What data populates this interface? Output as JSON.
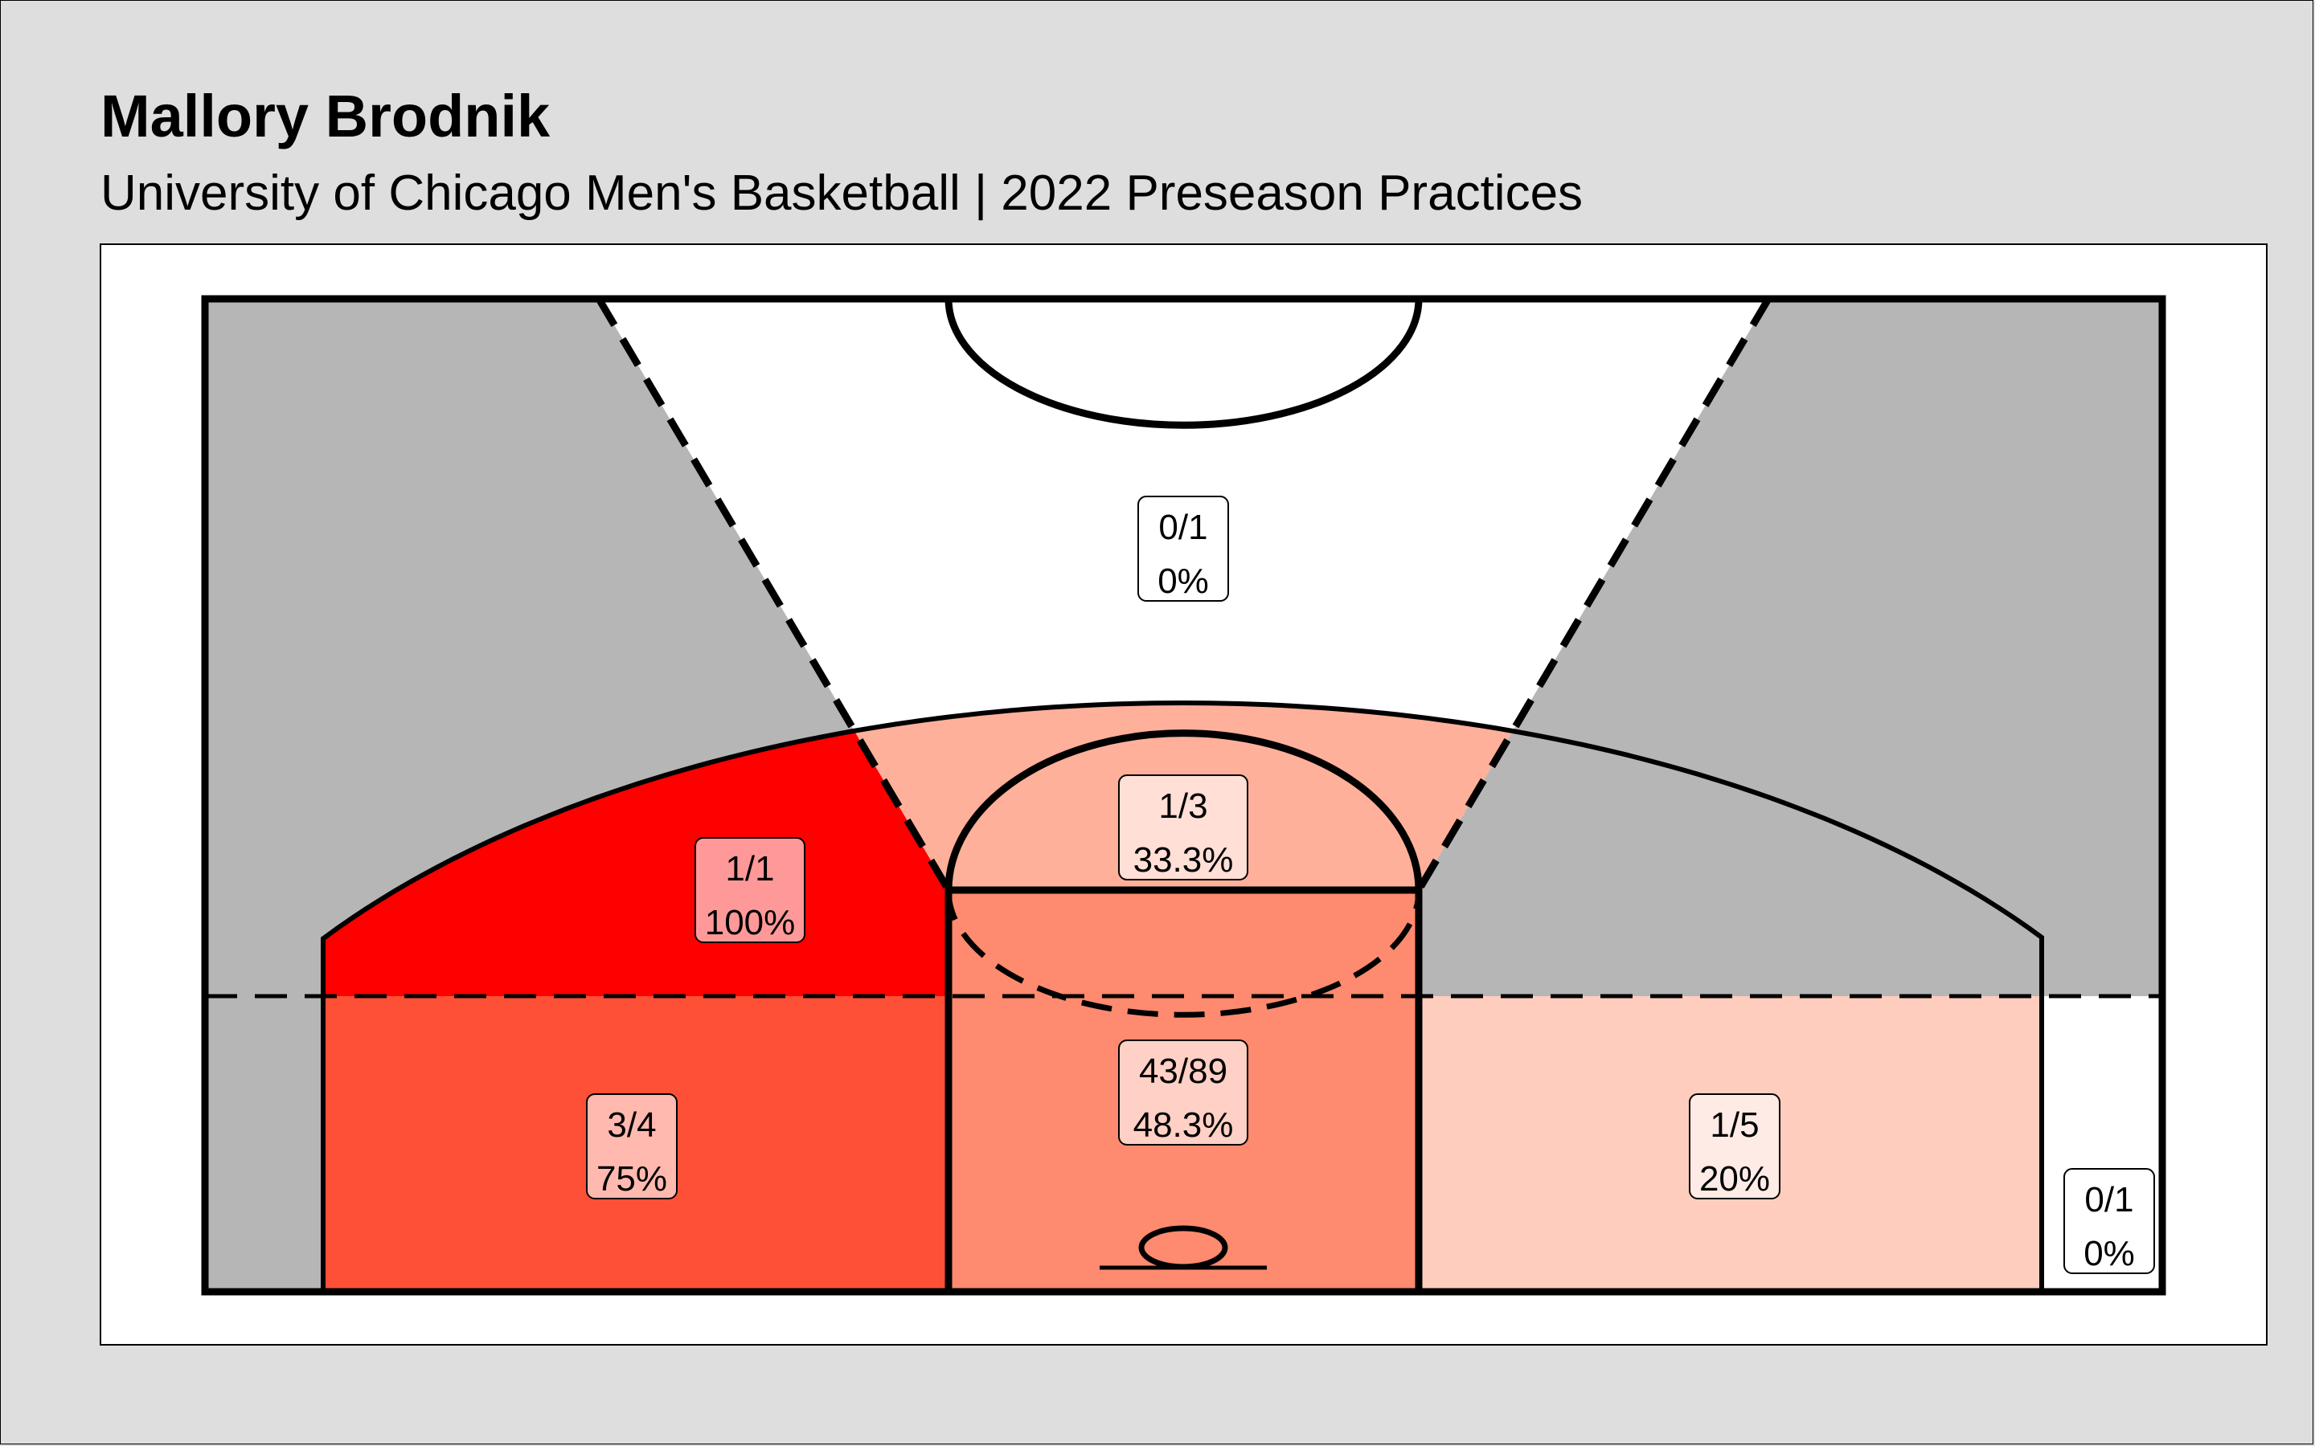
{
  "header": {
    "title": "Mallory Brodnik",
    "subtitle": "University of Chicago Men's Basketball | 2022 Preseason Practices"
  },
  "chart_data": {
    "type": "heatmap",
    "title": "Mallory Brodnik",
    "subtitle": "University of Chicago Men's Basketball | 2022 Preseason Practices",
    "zones": [
      {
        "id": "top-of-key-three",
        "made": 0,
        "attempts": 1,
        "label_made": "0/1",
        "label_pct": "0%",
        "pct": 0,
        "color": "#ffffff"
      },
      {
        "id": "free-throw-circle",
        "made": 1,
        "attempts": 3,
        "label_made": "1/3",
        "label_pct": "33.3%",
        "pct": 33.3,
        "color": "#feb09a"
      },
      {
        "id": "left-wing-midrange",
        "made": 1,
        "attempts": 1,
        "label_made": "1/1",
        "label_pct": "100%",
        "pct": 100,
        "color": "#fe0000"
      },
      {
        "id": "left-baseline-midrange",
        "made": 3,
        "attempts": 4,
        "label_made": "3/4",
        "label_pct": "75%",
        "pct": 75,
        "color": "#fe5037"
      },
      {
        "id": "paint",
        "made": 43,
        "attempts": 89,
        "label_made": "43/89",
        "label_pct": "48.3%",
        "pct": 48.3,
        "color": "#fe8a6f"
      },
      {
        "id": "right-baseline-midrange",
        "made": 1,
        "attempts": 5,
        "label_made": "1/5",
        "label_pct": "20%",
        "pct": 20,
        "color": "#fecdbd"
      },
      {
        "id": "right-corner-three",
        "made": 0,
        "attempts": 1,
        "label_made": "0/1",
        "label_pct": "0%",
        "pct": 0,
        "color": "#ffffff"
      },
      {
        "id": "left-wing-three",
        "made": 0,
        "attempts": 0,
        "color": "#b6b6b6"
      },
      {
        "id": "right-wing-three",
        "made": 0,
        "attempts": 0,
        "color": "#b6b6b6"
      },
      {
        "id": "right-wing-midrange",
        "made": 0,
        "attempts": 0,
        "color": "#b6b6b6"
      },
      {
        "id": "left-corner-three",
        "made": 0,
        "attempts": 0,
        "color": "#b6b6b6"
      }
    ],
    "colors": {
      "background": "#dedede",
      "panel": "#ffffff",
      "no_attempts": "#b6b6b6",
      "lines": "#000000"
    }
  }
}
